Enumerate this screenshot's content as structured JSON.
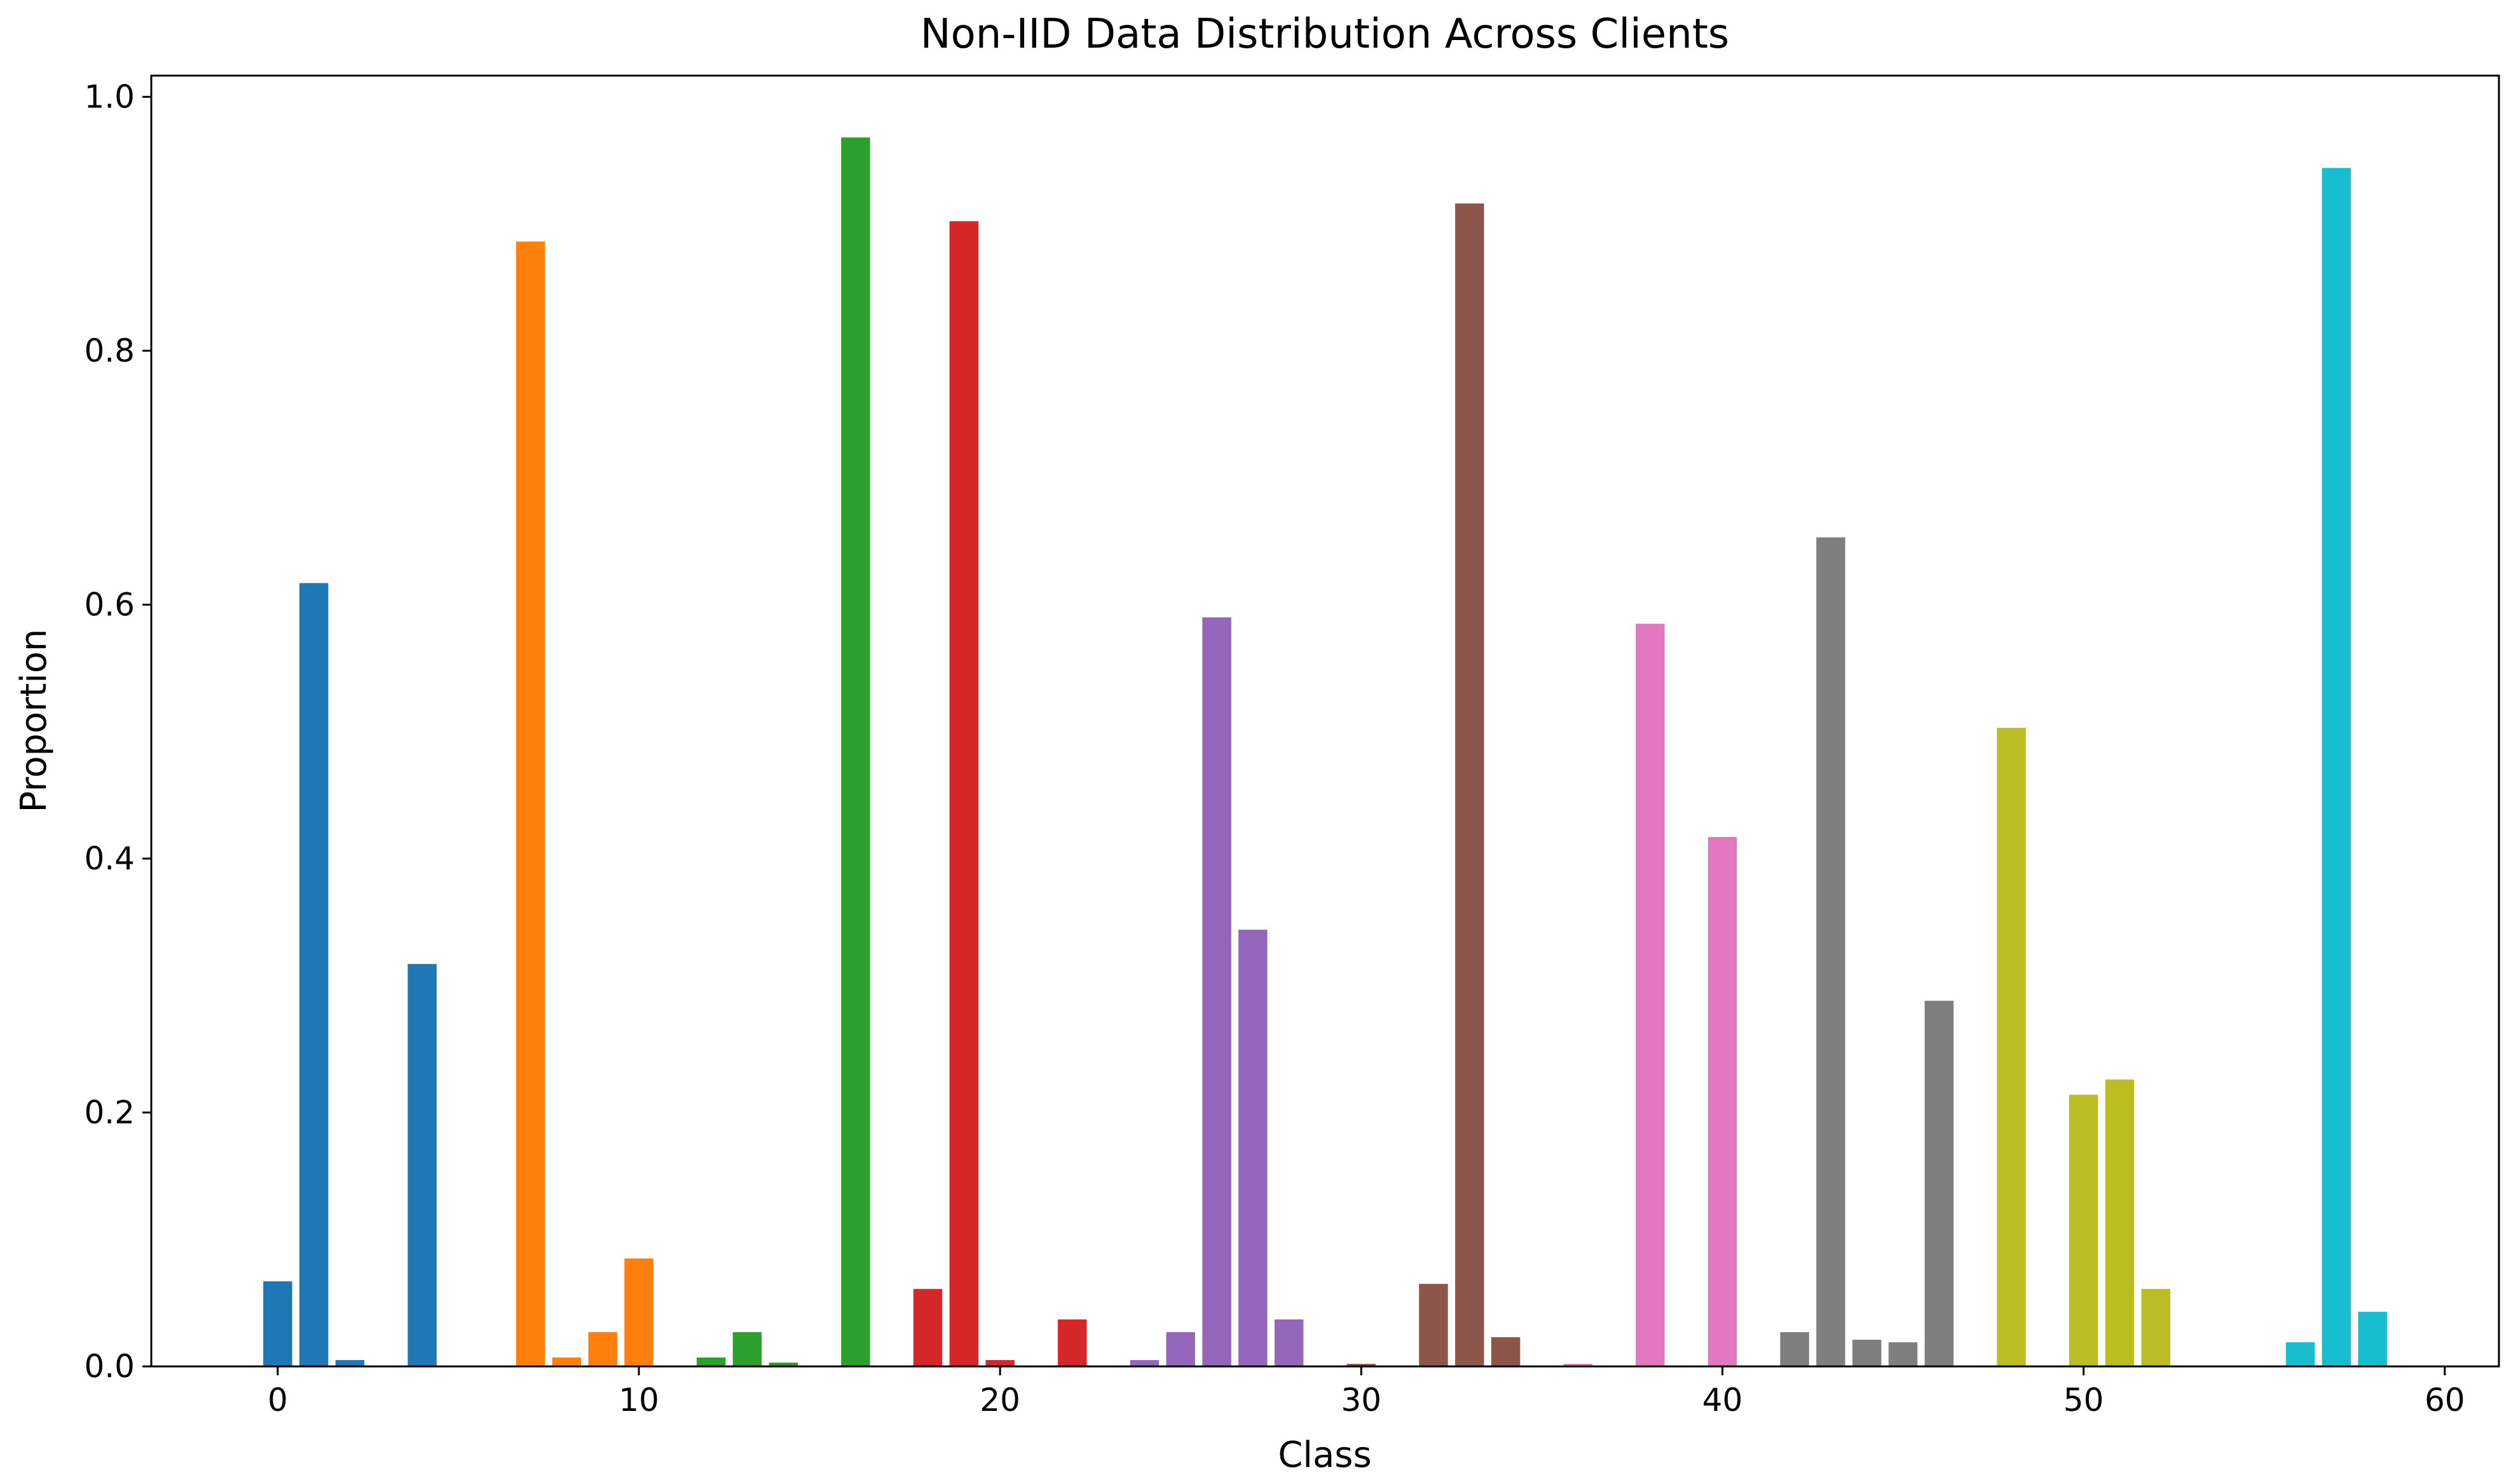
{
  "chart_data": {
    "type": "bar",
    "title": "Non-IID Data Distribution Across Clients",
    "xlabel": "Class",
    "ylabel": "Proportion",
    "xlim": [
      -3.5,
      61.5
    ],
    "ylim": [
      0,
      1.0167
    ],
    "xticks": [
      "0",
      "10",
      "20",
      "30",
      "40",
      "50",
      "60"
    ],
    "yticks": [
      "0.0",
      "0.2",
      "0.4",
      "0.6",
      "0.8",
      "1.0"
    ],
    "grid": false,
    "series": [
      {
        "color": "#1f77b4",
        "x": [
          0,
          1,
          2,
          3,
          4,
          5
        ],
        "values": [
          0.067,
          0.617,
          0.005,
          0.0,
          0.317,
          0.0
        ]
      },
      {
        "color": "#ff7f0e",
        "x": [
          6,
          7,
          8,
          9,
          10,
          11
        ],
        "values": [
          0.0,
          0.886,
          0.007,
          0.027,
          0.085,
          0.0
        ]
      },
      {
        "color": "#2ca02c",
        "x": [
          12,
          13,
          14,
          15,
          16,
          17
        ],
        "values": [
          0.007,
          0.027,
          0.003,
          0.0,
          0.968,
          0.0
        ]
      },
      {
        "color": "#d62728",
        "x": [
          18,
          19,
          20,
          21,
          22,
          23
        ],
        "values": [
          0.061,
          0.902,
          0.005,
          0.0,
          0.037,
          0.0
        ]
      },
      {
        "color": "#9467bd",
        "x": [
          24,
          25,
          26,
          27,
          28,
          29
        ],
        "values": [
          0.005,
          0.027,
          0.59,
          0.344,
          0.037,
          0.0
        ]
      },
      {
        "color": "#8c564b",
        "x": [
          30,
          31,
          32,
          33,
          34,
          35
        ],
        "values": [
          0.002,
          0.0,
          0.065,
          0.916,
          0.023,
          0.0
        ]
      },
      {
        "color": "#e377c2",
        "x": [
          36,
          37,
          38,
          39,
          40,
          41
        ],
        "values": [
          0.002,
          0.0,
          0.585,
          0.0,
          0.417,
          0.0
        ]
      },
      {
        "color": "#7f7f7f",
        "x": [
          42,
          43,
          44,
          45,
          46,
          47
        ],
        "values": [
          0.027,
          0.653,
          0.021,
          0.019,
          0.288,
          0.0
        ]
      },
      {
        "color": "#bcbd22",
        "x": [
          48,
          49,
          50,
          51,
          52,
          53
        ],
        "values": [
          0.503,
          0.0,
          0.214,
          0.226,
          0.061,
          0.0
        ]
      },
      {
        "color": "#17becf",
        "x": [
          54,
          55,
          56,
          57,
          58,
          59
        ],
        "values": [
          0.0,
          0.0,
          0.019,
          0.944,
          0.043,
          0.0
        ]
      }
    ]
  }
}
